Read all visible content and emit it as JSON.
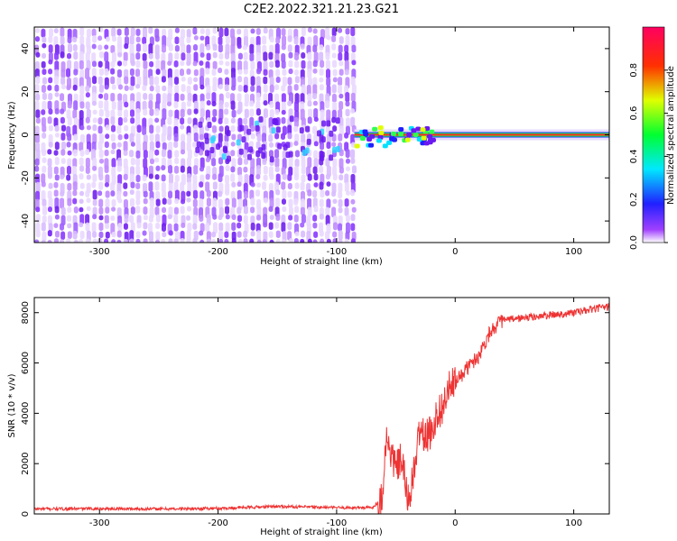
{
  "title": "C2E2.2022.321.21.23.G21",
  "chart_data": [
    {
      "type": "heatmap",
      "xlabel": "Height of straight line (km)",
      "ylabel": "Frequency (Hz)",
      "xlim": [
        -355,
        130
      ],
      "ylim": [
        -50,
        50
      ],
      "xticks": [
        -300,
        -200,
        -100,
        0,
        100
      ],
      "yticks": [
        -40,
        -20,
        0,
        20,
        40
      ],
      "colorbar": {
        "label": "Normalized spectral amplitude",
        "range": [
          0,
          1
        ],
        "ticks": [
          0,
          0.2,
          0.4,
          0.6,
          0.8
        ]
      },
      "regions": [
        {
          "description_of_data": "noise",
          "x_range": [
            -355,
            -85
          ],
          "y_range": [
            -50,
            50
          ],
          "amplitude": "low"
        },
        {
          "description_of_data": "signal",
          "x_range": [
            -85,
            130
          ],
          "frequency": 0,
          "amplitude": "high"
        }
      ],
      "grid": false
    },
    {
      "type": "line",
      "xlabel": "Height of straight line (km)",
      "ylabel": "SNR (10 * v/v)",
      "xlim": [
        -355,
        130
      ],
      "ylim": [
        0,
        8600
      ],
      "xticks": [
        -300,
        -200,
        -100,
        0,
        100
      ],
      "yticks": [
        0,
        2000,
        4000,
        6000,
        8000
      ],
      "color": "#ee3333",
      "x": [
        -355,
        -300,
        -250,
        -200,
        -150,
        -100,
        -70,
        -62,
        -58,
        -50,
        -45,
        -40,
        -35,
        -30,
        -25,
        -20,
        -15,
        -10,
        -5,
        0,
        5,
        10,
        20,
        30,
        40,
        60,
        80,
        100,
        130
      ],
      "values": [
        200,
        210,
        200,
        220,
        300,
        250,
        250,
        600,
        3000,
        1800,
        2200,
        500,
        1500,
        3400,
        3000,
        3300,
        4000,
        4300,
        5000,
        5200,
        5500,
        5800,
        6300,
        7300,
        7700,
        7800,
        7900,
        8000,
        8250
      ],
      "grid": false
    }
  ]
}
